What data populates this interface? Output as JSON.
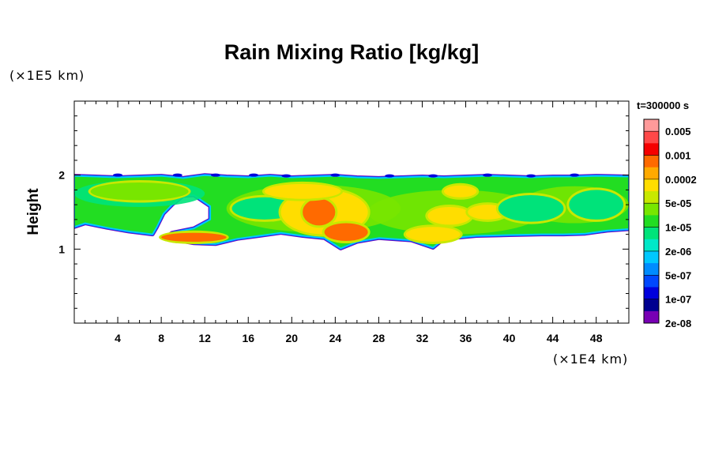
{
  "chart_data": {
    "type": "heatmap",
    "title": "Rain Mixing Ratio [kg/kg]",
    "ylabel": "Height",
    "x_unit": "(×1E4 km)",
    "y_unit": "(×1E5 km)",
    "time_label": "t=300000 s",
    "xlim": [
      0,
      51
    ],
    "ylim": [
      0,
      3
    ],
    "x_ticks": [
      4,
      8,
      12,
      16,
      20,
      24,
      28,
      32,
      36,
      40,
      44,
      48
    ],
    "y_ticks": [
      1,
      2
    ],
    "colorbar": {
      "labels": [
        "0.005",
        "0.001",
        "0.0002",
        "5e-05",
        "1e-05",
        "2e-06",
        "5e-07",
        "1e-07",
        "2e-08"
      ],
      "colors": [
        "#ff9a9a",
        "#ff4848",
        "#f50000",
        "#ff6a00",
        "#ffaa00",
        "#ffdd00",
        "#c8e800",
        "#78e600",
        "#22dd22",
        "#00e37a",
        "#00e8c8",
        "#00c8ff",
        "#008cff",
        "#0048ff",
        "#0000dd",
        "#000090",
        "#7800b4"
      ]
    },
    "cloud_band": {
      "top_edge": [
        [
          0,
          1.99
        ],
        [
          2,
          1.98
        ],
        [
          4,
          1.97
        ],
        [
          6,
          1.98
        ],
        [
          8,
          1.99
        ],
        [
          10,
          1.96
        ],
        [
          12,
          2.0
        ],
        [
          14,
          1.98
        ],
        [
          16,
          1.97
        ],
        [
          18,
          1.99
        ],
        [
          20,
          1.97
        ],
        [
          22,
          1.98
        ],
        [
          24,
          1.99
        ],
        [
          26,
          1.97
        ],
        [
          28,
          1.96
        ],
        [
          30,
          1.97
        ],
        [
          32,
          1.98
        ],
        [
          34,
          1.97
        ],
        [
          36,
          1.98
        ],
        [
          38,
          1.99
        ],
        [
          40,
          1.98
        ],
        [
          42,
          1.97
        ],
        [
          44,
          1.98
        ],
        [
          46,
          1.98
        ],
        [
          48,
          1.99
        ],
        [
          51,
          1.98
        ]
      ],
      "bottom_edge": [
        [
          51,
          1.27
        ],
        [
          49,
          1.25
        ],
        [
          47,
          1.21
        ],
        [
          45,
          1.2
        ],
        [
          43,
          1.2
        ],
        [
          40,
          1.19
        ],
        [
          37,
          1.18
        ],
        [
          34,
          1.14
        ],
        [
          33,
          1.02
        ],
        [
          31,
          1.12
        ],
        [
          28,
          1.15
        ],
        [
          26,
          1.1
        ],
        [
          24.5,
          1.01
        ],
        [
          23,
          1.15
        ],
        [
          21,
          1.18
        ],
        [
          19,
          1.22
        ],
        [
          17,
          1.18
        ],
        [
          15,
          1.14
        ],
        [
          13,
          1.07
        ],
        [
          11,
          1.08
        ],
        [
          8.3,
          1.15
        ],
        [
          9,
          1.22
        ],
        [
          11,
          1.28
        ],
        [
          12.5,
          1.4
        ],
        [
          12.5,
          1.58
        ],
        [
          11,
          1.73
        ],
        [
          10,
          1.72
        ],
        [
          9,
          1.6
        ],
        [
          8.2,
          1.48
        ],
        [
          7.6,
          1.3
        ],
        [
          7.2,
          1.2
        ],
        [
          5,
          1.24
        ],
        [
          3,
          1.29
        ],
        [
          1,
          1.35
        ],
        [
          0,
          1.3
        ]
      ],
      "blobs": [
        {
          "x": 6,
          "y": 1.78,
          "rx": 4.5,
          "ry": 0.12,
          "level": "5e-05"
        },
        {
          "x": 11,
          "y": 1.16,
          "rx": 3,
          "ry": 0.06,
          "level": "0.001"
        },
        {
          "x": 17.5,
          "y": 1.55,
          "rx": 3,
          "ry": 0.15,
          "level": "1e-05"
        },
        {
          "x": 23,
          "y": 1.5,
          "rx": 4,
          "ry": 0.3,
          "level": "0.0002"
        },
        {
          "x": 25,
          "y": 1.23,
          "rx": 2,
          "ry": 0.12,
          "level": "0.001"
        },
        {
          "x": 22.5,
          "y": 1.5,
          "rx": 1.5,
          "ry": 0.18,
          "level": "0.001"
        },
        {
          "x": 21,
          "y": 1.78,
          "rx": 3.5,
          "ry": 0.1,
          "level": "0.0002"
        },
        {
          "x": 33,
          "y": 1.2,
          "rx": 2.5,
          "ry": 0.1,
          "level": "0.0002"
        },
        {
          "x": 34.5,
          "y": 1.45,
          "rx": 2,
          "ry": 0.12,
          "level": "0.0002"
        },
        {
          "x": 38,
          "y": 1.5,
          "rx": 1.8,
          "ry": 0.1,
          "level": "0.0002"
        },
        {
          "x": 35.5,
          "y": 1.78,
          "rx": 1.5,
          "ry": 0.08,
          "level": "0.0002"
        },
        {
          "x": 42,
          "y": 1.55,
          "rx": 3,
          "ry": 0.18,
          "level": "1e-05"
        },
        {
          "x": 48,
          "y": 1.6,
          "rx": 2.5,
          "ry": 0.2,
          "level": "1e-05"
        }
      ]
    }
  }
}
